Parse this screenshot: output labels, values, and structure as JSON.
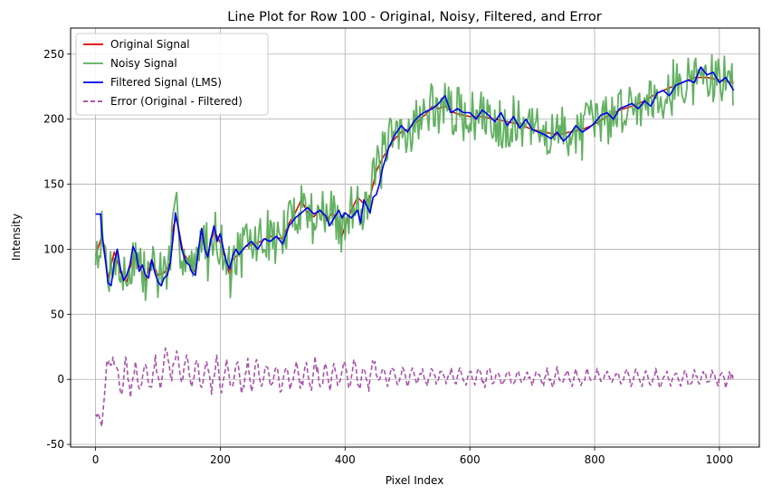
{
  "chart_data": {
    "type": "line",
    "title": "Line Plot for Row 100 - Original, Noisy, Filtered, and Error",
    "xlabel": "Pixel Index",
    "ylabel": "Intensity",
    "xlim": [
      -40,
      1064
    ],
    "ylim": [
      -52,
      270
    ],
    "xticks": [
      0,
      200,
      400,
      600,
      800,
      1000
    ],
    "yticks": [
      -50,
      0,
      50,
      100,
      150,
      200,
      250
    ],
    "grid": true,
    "legend_position": "top-left",
    "series": [
      {
        "name": "Original Signal",
        "color": "#e00000",
        "style": "solid",
        "points": [
          [
            0,
            95
          ],
          [
            10,
            110
          ],
          [
            20,
            78
          ],
          [
            30,
            98
          ],
          [
            40,
            82
          ],
          [
            50,
            75
          ],
          [
            60,
            95
          ],
          [
            70,
            88
          ],
          [
            80,
            76
          ],
          [
            90,
            92
          ],
          [
            100,
            80
          ],
          [
            110,
            82
          ],
          [
            120,
            90
          ],
          [
            125,
            118
          ],
          [
            130,
            124
          ],
          [
            140,
            98
          ],
          [
            150,
            90
          ],
          [
            160,
            82
          ],
          [
            170,
            115
          ],
          [
            180,
            96
          ],
          [
            190,
            115
          ],
          [
            200,
            105
          ],
          [
            210,
            90
          ],
          [
            215,
            80
          ],
          [
            220,
            92
          ],
          [
            240,
            102
          ],
          [
            260,
            105
          ],
          [
            280,
            110
          ],
          [
            300,
            108
          ],
          [
            310,
            120
          ],
          [
            320,
            128
          ],
          [
            330,
            138
          ],
          [
            340,
            128
          ],
          [
            350,
            125
          ],
          [
            360,
            130
          ],
          [
            370,
            122
          ],
          [
            380,
            128
          ],
          [
            390,
            120
          ],
          [
            395,
            110
          ],
          [
            400,
            118
          ],
          [
            410,
            130
          ],
          [
            420,
            140
          ],
          [
            430,
            135
          ],
          [
            440,
            140
          ],
          [
            450,
            160
          ],
          [
            460,
            170
          ],
          [
            470,
            178
          ],
          [
            480,
            185
          ],
          [
            490,
            190
          ],
          [
            500,
            192
          ],
          [
            510,
            196
          ],
          [
            520,
            200
          ],
          [
            530,
            204
          ],
          [
            540,
            210
          ],
          [
            550,
            208
          ],
          [
            560,
            210
          ],
          [
            570,
            206
          ],
          [
            580,
            204
          ],
          [
            600,
            202
          ],
          [
            620,
            202
          ],
          [
            640,
            200
          ],
          [
            660,
            198
          ],
          [
            680,
            196
          ],
          [
            700,
            192
          ],
          [
            720,
            190
          ],
          [
            740,
            188
          ],
          [
            760,
            190
          ],
          [
            780,
            192
          ],
          [
            800,
            196
          ],
          [
            820,
            202
          ],
          [
            840,
            207
          ],
          [
            860,
            210
          ],
          [
            880,
            214
          ],
          [
            900,
            220
          ],
          [
            920,
            224
          ],
          [
            940,
            228
          ],
          [
            960,
            232
          ],
          [
            980,
            232
          ],
          [
            1000,
            230
          ],
          [
            1023,
            228
          ]
        ]
      },
      {
        "name": "Noisy Signal",
        "color": "#5aad5a",
        "style": "solid",
        "seed": 7,
        "amplitude": 20
      },
      {
        "name": "Filtered Signal (LMS)",
        "color": "#0000ee",
        "style": "solid",
        "points": [
          [
            0,
            127
          ],
          [
            8,
            127
          ],
          [
            10,
            113
          ],
          [
            15,
            95
          ],
          [
            20,
            74
          ],
          [
            25,
            72
          ],
          [
            30,
            90
          ],
          [
            35,
            100
          ],
          [
            40,
            85
          ],
          [
            45,
            76
          ],
          [
            50,
            80
          ],
          [
            55,
            88
          ],
          [
            60,
            102
          ],
          [
            65,
            97
          ],
          [
            70,
            83
          ],
          [
            75,
            88
          ],
          [
            80,
            80
          ],
          [
            85,
            78
          ],
          [
            90,
            92
          ],
          [
            95,
            82
          ],
          [
            100,
            75
          ],
          [
            105,
            72
          ],
          [
            110,
            78
          ],
          [
            115,
            80
          ],
          [
            120,
            90
          ],
          [
            125,
            112
          ],
          [
            128,
            128
          ],
          [
            132,
            118
          ],
          [
            138,
            100
          ],
          [
            145,
            90
          ],
          [
            150,
            88
          ],
          [
            155,
            82
          ],
          [
            160,
            80
          ],
          [
            165,
            100
          ],
          [
            170,
            116
          ],
          [
            175,
            100
          ],
          [
            180,
            94
          ],
          [
            185,
            108
          ],
          [
            190,
            118
          ],
          [
            195,
            106
          ],
          [
            200,
            112
          ],
          [
            205,
            100
          ],
          [
            210,
            90
          ],
          [
            215,
            85
          ],
          [
            220,
            95
          ],
          [
            225,
            100
          ],
          [
            230,
            96
          ],
          [
            240,
            102
          ],
          [
            250,
            106
          ],
          [
            260,
            100
          ],
          [
            270,
            108
          ],
          [
            280,
            106
          ],
          [
            290,
            110
          ],
          [
            300,
            104
          ],
          [
            310,
            118
          ],
          [
            320,
            124
          ],
          [
            330,
            128
          ],
          [
            340,
            132
          ],
          [
            350,
            127
          ],
          [
            360,
            130
          ],
          [
            370,
            125
          ],
          [
            375,
            118
          ],
          [
            380,
            122
          ],
          [
            390,
            130
          ],
          [
            395,
            124
          ],
          [
            400,
            128
          ],
          [
            410,
            124
          ],
          [
            420,
            130
          ],
          [
            425,
            120
          ],
          [
            430,
            138
          ],
          [
            440,
            128
          ],
          [
            445,
            140
          ],
          [
            450,
            142
          ],
          [
            455,
            150
          ],
          [
            460,
            162
          ],
          [
            470,
            178
          ],
          [
            480,
            188
          ],
          [
            490,
            195
          ],
          [
            500,
            190
          ],
          [
            510,
            198
          ],
          [
            520,
            203
          ],
          [
            530,
            206
          ],
          [
            540,
            208
          ],
          [
            550,
            212
          ],
          [
            560,
            218
          ],
          [
            570,
            205
          ],
          [
            580,
            208
          ],
          [
            590,
            205
          ],
          [
            600,
            205
          ],
          [
            610,
            200
          ],
          [
            620,
            207
          ],
          [
            630,
            203
          ],
          [
            640,
            198
          ],
          [
            650,
            205
          ],
          [
            660,
            195
          ],
          [
            670,
            202
          ],
          [
            680,
            193
          ],
          [
            690,
            200
          ],
          [
            700,
            192
          ],
          [
            710,
            190
          ],
          [
            720,
            188
          ],
          [
            730,
            185
          ],
          [
            740,
            190
          ],
          [
            750,
            183
          ],
          [
            760,
            188
          ],
          [
            770,
            195
          ],
          [
            780,
            190
          ],
          [
            790,
            193
          ],
          [
            800,
            197
          ],
          [
            810,
            203
          ],
          [
            820,
            205
          ],
          [
            830,
            200
          ],
          [
            840,
            208
          ],
          [
            850,
            210
          ],
          [
            860,
            212
          ],
          [
            870,
            208
          ],
          [
            880,
            214
          ],
          [
            890,
            210
          ],
          [
            900,
            220
          ],
          [
            910,
            222
          ],
          [
            920,
            218
          ],
          [
            930,
            226
          ],
          [
            940,
            228
          ],
          [
            950,
            230
          ],
          [
            960,
            228
          ],
          [
            970,
            240
          ],
          [
            980,
            234
          ],
          [
            990,
            236
          ],
          [
            1000,
            228
          ],
          [
            1010,
            232
          ],
          [
            1023,
            222
          ]
        ]
      },
      {
        "name": "Error (Original - Filtered)",
        "color": "#a040a0",
        "style": "dashed",
        "seed": 13,
        "amplitude": 6
      }
    ],
    "error_envelope": [
      [
        0,
        -34
      ],
      [
        8,
        -30
      ],
      [
        15,
        -10
      ],
      [
        25,
        26
      ],
      [
        35,
        -5
      ],
      [
        50,
        2
      ],
      [
        70,
        0
      ],
      [
        100,
        4
      ],
      [
        120,
        15
      ],
      [
        130,
        10
      ],
      [
        150,
        5
      ],
      [
        200,
        3
      ],
      [
        300,
        2
      ],
      [
        400,
        4
      ],
      [
        500,
        2
      ],
      [
        600,
        2
      ],
      [
        700,
        1
      ],
      [
        800,
        2
      ],
      [
        900,
        1
      ],
      [
        1023,
        0
      ]
    ]
  }
}
